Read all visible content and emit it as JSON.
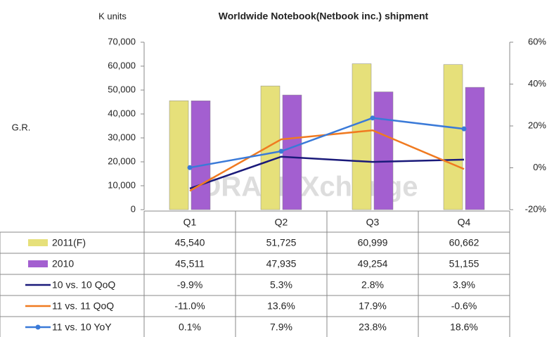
{
  "chart_data": {
    "type": "bar-line",
    "title": "Worldwide Notebook(Netbook inc.) shipment",
    "y_label": "K units",
    "y2_label": "G.R.",
    "watermark": "DRAMeXchange",
    "categories": [
      "Q1",
      "Q2",
      "Q3",
      "Q4"
    ],
    "ylim": [
      0,
      70000
    ],
    "yticks": [
      {
        "value": 0,
        "label": "0"
      },
      {
        "value": 10000,
        "label": "10,000"
      },
      {
        "value": 20000,
        "label": "20,000"
      },
      {
        "value": 30000,
        "label": "30,000"
      },
      {
        "value": 40000,
        "label": "40,000"
      },
      {
        "value": 50000,
        "label": "50,000"
      },
      {
        "value": 60000,
        "label": "60,000"
      },
      {
        "value": 70000,
        "label": "70,000"
      }
    ],
    "y2lim": [
      -20,
      60
    ],
    "y2ticks": [
      {
        "value": -20,
        "label": "-20%"
      },
      {
        "value": 0,
        "label": "0%"
      },
      {
        "value": 20,
        "label": "20%"
      },
      {
        "value": 40,
        "label": "40%"
      },
      {
        "value": 60,
        "label": "60%"
      }
    ],
    "series": [
      {
        "name": "2011(F)",
        "kind": "bar",
        "color": "#e6e07a",
        "values": [
          45540,
          51725,
          60999,
          60662
        ],
        "value_labels": [
          "45,540",
          "51,725",
          "60,999",
          "60,662"
        ]
      },
      {
        "name": "2010",
        "kind": "bar",
        "color": "#a35fd0",
        "values": [
          45511,
          47935,
          49254,
          51155
        ],
        "value_labels": [
          "45,511",
          "47,935",
          "49,254",
          "51,155"
        ]
      },
      {
        "name": "10 vs. 10 QoQ",
        "kind": "line",
        "axis": "y2",
        "color": "#1a1a7a",
        "values": [
          -9.9,
          5.3,
          2.8,
          3.9
        ],
        "value_labels": [
          "-9.9%",
          "5.3%",
          "2.8%",
          "3.9%"
        ]
      },
      {
        "name": "11 vs. 11 QoQ",
        "kind": "line",
        "axis": "y2",
        "color": "#f07a20",
        "values": [
          -11.0,
          13.6,
          17.9,
          -0.6
        ],
        "value_labels": [
          "-11.0%",
          "13.6%",
          "17.9%",
          "-0.6%"
        ]
      },
      {
        "name": "11 vs. 10 YoY",
        "kind": "line",
        "axis": "y2",
        "marker": true,
        "color": "#3a7ad8",
        "values": [
          0.1,
          7.9,
          23.8,
          18.6
        ],
        "value_labels": [
          "0.1%",
          "7.9%",
          "23.8%",
          "18.6%"
        ]
      }
    ]
  }
}
